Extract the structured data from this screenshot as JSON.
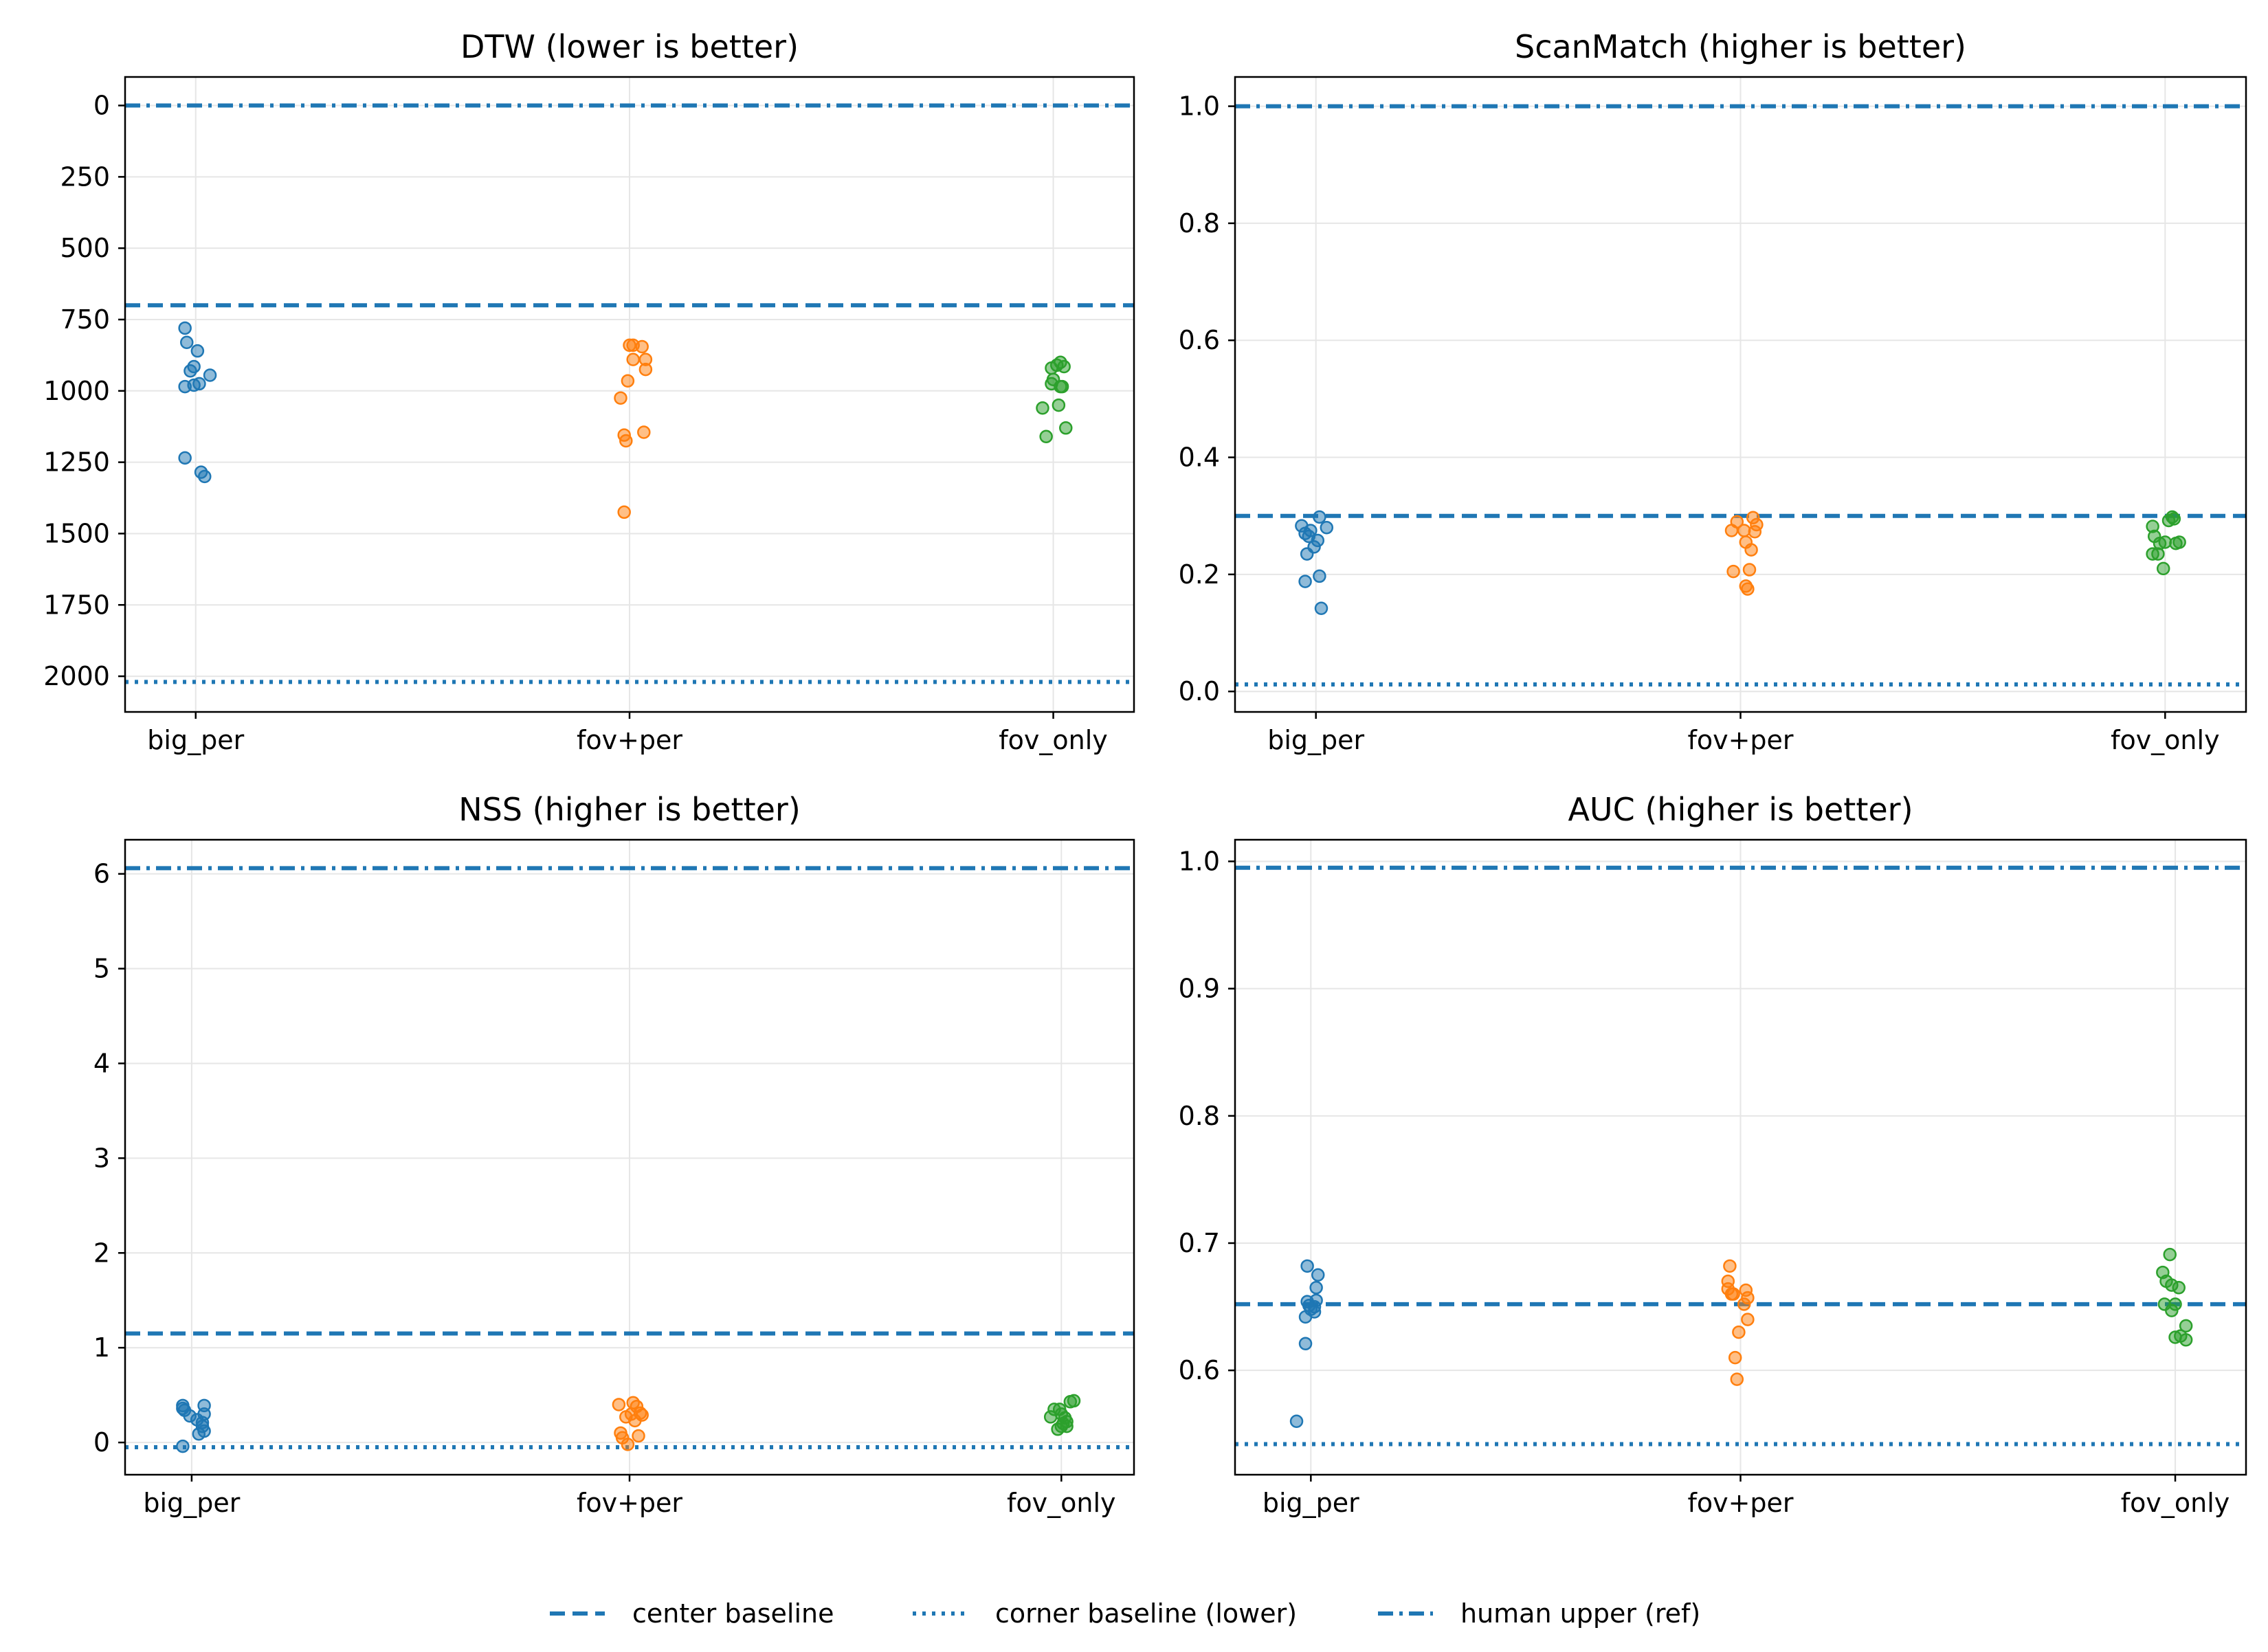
{
  "colors": {
    "big_per": "#1f77b4",
    "fov+per": "#ff7f0e",
    "fov_only": "#2ca02c",
    "baseline": "#1f77b4",
    "grid": "#e6e6e6"
  },
  "legend": {
    "placement": "bottom-center",
    "items": [
      {
        "label": "center baseline",
        "style": "dashed"
      },
      {
        "label": "corner baseline (lower)",
        "style": "dotted"
      },
      {
        "label": "human upper (ref)",
        "style": "dashdot"
      }
    ]
  },
  "chart_data": [
    {
      "type": "scatter",
      "title": "DTW (lower is better)",
      "categories": [
        "big_per",
        "fov+per",
        "fov_only"
      ],
      "ylim": [
        2125,
        -100
      ],
      "y_inverted": true,
      "yticks": [
        0,
        250,
        500,
        750,
        1000,
        1250,
        1500,
        1750,
        2000
      ],
      "ytick_labels": [
        "0",
        "250",
        "500",
        "750",
        "1000",
        "1250",
        "1500",
        "1750",
        "2000"
      ],
      "grid": true,
      "baselines": {
        "center": 700,
        "corner": 2020,
        "human": 0
      },
      "series": [
        {
          "name": "big_per",
          "points": [
            [
              -0.06,
              780
            ],
            [
              -0.05,
              830
            ],
            [
              -0.03,
              930
            ],
            [
              -0.01,
              915
            ],
            [
              0.01,
              860
            ],
            [
              -0.06,
              985
            ],
            [
              -0.01,
              980
            ],
            [
              0.02,
              975
            ],
            [
              0.08,
              945
            ],
            [
              -0.06,
              1235
            ],
            [
              0.03,
              1285
            ],
            [
              0.05,
              1300
            ]
          ]
        },
        {
          "name": "fov+per",
          "points": [
            [
              -0.05,
              1025
            ],
            [
              -0.03,
              1155
            ],
            [
              -0.02,
              1175
            ],
            [
              -0.01,
              965
            ],
            [
              0.0,
              840
            ],
            [
              0.02,
              890
            ],
            [
              0.02,
              840
            ],
            [
              0.07,
              845
            ],
            [
              0.09,
              890
            ],
            [
              0.09,
              925
            ],
            [
              0.08,
              1145
            ],
            [
              -0.03,
              1425
            ]
          ]
        },
        {
          "name": "fov_only",
          "points": [
            [
              -0.06,
              1060
            ],
            [
              -0.04,
              1160
            ],
            [
              -0.01,
              920
            ],
            [
              -0.01,
              975
            ],
            [
              0.0,
              960
            ],
            [
              0.02,
              910
            ],
            [
              0.03,
              1050
            ],
            [
              0.04,
              985
            ],
            [
              0.05,
              985
            ],
            [
              0.06,
              915
            ],
            [
              0.04,
              900
            ],
            [
              0.07,
              1130
            ]
          ]
        }
      ]
    },
    {
      "type": "scatter",
      "title": "ScanMatch (higher is better)",
      "categories": [
        "big_per",
        "fov+per",
        "fov_only"
      ],
      "ylim": [
        -0.035,
        1.05
      ],
      "yticks": [
        0.0,
        0.2,
        0.4,
        0.6,
        0.8,
        1.0
      ],
      "ytick_labels": [
        "0.0",
        "0.2",
        "0.4",
        "0.6",
        "0.8",
        "1.0"
      ],
      "grid": true,
      "baselines": {
        "center": 0.3,
        "corner": 0.012,
        "human": 1.0
      },
      "series": [
        {
          "name": "big_per",
          "points": [
            [
              -0.08,
              0.283
            ],
            [
              -0.06,
              0.27
            ],
            [
              -0.05,
              0.235
            ],
            [
              -0.04,
              0.265
            ],
            [
              -0.03,
              0.275
            ],
            [
              -0.01,
              0.247
            ],
            [
              0.01,
              0.258
            ],
            [
              0.02,
              0.298
            ],
            [
              0.06,
              0.28
            ],
            [
              -0.06,
              0.188
            ],
            [
              0.02,
              0.197
            ],
            [
              0.03,
              0.142
            ]
          ]
        },
        {
          "name": "fov+per",
          "points": [
            [
              -0.05,
              0.275
            ],
            [
              -0.04,
              0.205
            ],
            [
              -0.02,
              0.29
            ],
            [
              0.02,
              0.275
            ],
            [
              0.03,
              0.255
            ],
            [
              0.03,
              0.18
            ],
            [
              0.04,
              0.175
            ],
            [
              0.05,
              0.208
            ],
            [
              0.06,
              0.242
            ],
            [
              0.07,
              0.297
            ],
            [
              0.09,
              0.285
            ],
            [
              0.08,
              0.273
            ]
          ]
        },
        {
          "name": "fov_only",
          "points": [
            [
              -0.07,
              0.282
            ],
            [
              -0.07,
              0.235
            ],
            [
              -0.06,
              0.265
            ],
            [
              -0.04,
              0.235
            ],
            [
              -0.03,
              0.253
            ],
            [
              -0.01,
              0.21
            ],
            [
              0.0,
              0.255
            ],
            [
              0.02,
              0.292
            ],
            [
              0.04,
              0.298
            ],
            [
              0.05,
              0.295
            ],
            [
              0.06,
              0.253
            ],
            [
              0.08,
              0.255
            ]
          ]
        }
      ]
    },
    {
      "type": "scatter",
      "title": "NSS (higher is better)",
      "categories": [
        "big_per",
        "fov+per",
        "fov_only"
      ],
      "ylim": [
        -0.34,
        6.36
      ],
      "yticks": [
        0,
        1,
        2,
        3,
        4,
        5,
        6
      ],
      "ytick_labels": [
        "0",
        "1",
        "2",
        "3",
        "4",
        "5",
        "6"
      ],
      "grid": true,
      "baselines": {
        "center": 1.15,
        "corner": -0.05,
        "human": 6.06
      },
      "series": [
        {
          "name": "big_per",
          "points": [
            [
              -0.05,
              0.39
            ],
            [
              -0.05,
              0.36
            ],
            [
              -0.04,
              0.34
            ],
            [
              -0.01,
              0.28
            ],
            [
              0.03,
              0.24
            ],
            [
              0.04,
              0.09
            ],
            [
              0.06,
              0.17
            ],
            [
              0.06,
              0.21
            ],
            [
              0.07,
              0.3
            ],
            [
              0.07,
              0.39
            ],
            [
              0.07,
              0.12
            ],
            [
              -0.05,
              -0.04
            ]
          ]
        },
        {
          "name": "fov+per",
          "points": [
            [
              -0.06,
              0.4
            ],
            [
              -0.05,
              0.1
            ],
            [
              -0.04,
              0.05
            ],
            [
              -0.02,
              0.27
            ],
            [
              -0.01,
              -0.02
            ],
            [
              0.01,
              0.3
            ],
            [
              0.02,
              0.42
            ],
            [
              0.03,
              0.23
            ],
            [
              0.04,
              0.38
            ],
            [
              0.05,
              0.07
            ],
            [
              0.06,
              0.31
            ],
            [
              0.07,
              0.29
            ]
          ]
        },
        {
          "name": "fov_only",
          "points": [
            [
              -0.06,
              0.27
            ],
            [
              -0.04,
              0.35
            ],
            [
              -0.02,
              0.14
            ],
            [
              -0.01,
              0.35
            ],
            [
              0.0,
              0.3
            ],
            [
              0.0,
              0.17
            ],
            [
              0.01,
              0.2
            ],
            [
              0.02,
              0.26
            ],
            [
              0.03,
              0.22
            ],
            [
              0.03,
              0.17
            ],
            [
              0.05,
              0.43
            ],
            [
              0.07,
              0.44
            ]
          ]
        }
      ]
    },
    {
      "type": "scatter",
      "title": "AUC (higher is better)",
      "categories": [
        "big_per",
        "fov+per",
        "fov_only"
      ],
      "ylim": [
        0.518,
        1.017
      ],
      "yticks": [
        0.6,
        0.7,
        0.8,
        0.9,
        1.0
      ],
      "ytick_labels": [
        "0.6",
        "0.7",
        "0.8",
        "0.9",
        "1.0"
      ],
      "grid": true,
      "baselines": {
        "center": 0.652,
        "corner": 0.542,
        "human": 0.995
      },
      "series": [
        {
          "name": "big_per",
          "points": [
            [
              -0.08,
              0.56
            ],
            [
              -0.03,
              0.642
            ],
            [
              -0.03,
              0.621
            ],
            [
              -0.02,
              0.682
            ],
            [
              -0.02,
              0.654
            ],
            [
              0.0,
              0.648
            ],
            [
              0.02,
              0.65
            ],
            [
              0.02,
              0.646
            ],
            [
              0.03,
              0.665
            ],
            [
              0.04,
              0.675
            ],
            [
              0.03,
              0.655
            ],
            [
              -0.01,
              0.651
            ]
          ]
        },
        {
          "name": "fov+per",
          "points": [
            [
              -0.07,
              0.664
            ],
            [
              -0.07,
              0.67
            ],
            [
              -0.06,
              0.682
            ],
            [
              -0.05,
              0.66
            ],
            [
              -0.03,
              0.61
            ],
            [
              -0.02,
              0.593
            ],
            [
              -0.01,
              0.63
            ],
            [
              0.02,
              0.652
            ],
            [
              0.03,
              0.663
            ],
            [
              0.04,
              0.657
            ],
            [
              0.04,
              0.64
            ],
            [
              -0.04,
              0.66
            ]
          ]
        },
        {
          "name": "fov_only",
          "points": [
            [
              -0.07,
              0.677
            ],
            [
              -0.06,
              0.652
            ],
            [
              -0.05,
              0.67
            ],
            [
              -0.03,
              0.691
            ],
            [
              -0.02,
              0.667
            ],
            [
              -0.02,
              0.647
            ],
            [
              0.0,
              0.652
            ],
            [
              0.0,
              0.626
            ],
            [
              0.02,
              0.665
            ],
            [
              0.03,
              0.627
            ],
            [
              0.06,
              0.635
            ],
            [
              0.06,
              0.624
            ]
          ]
        }
      ]
    }
  ]
}
